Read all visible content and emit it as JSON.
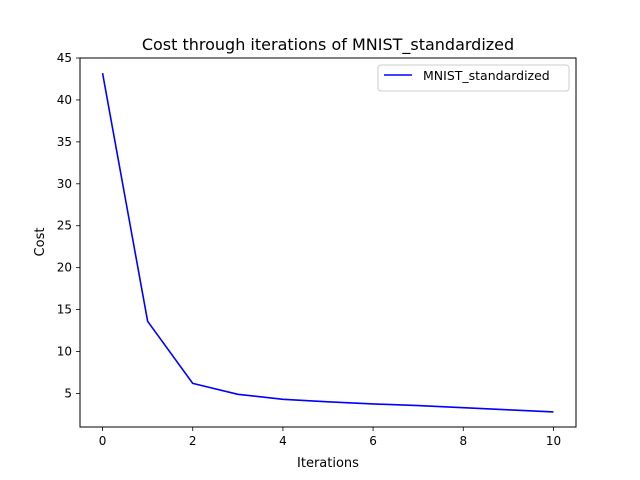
{
  "chart_data": {
    "type": "line",
    "title": "Cost through iterations of MNIST_standardized",
    "xlabel": "Iterations",
    "ylabel": "Cost",
    "xlim": [
      -0.5,
      10.5
    ],
    "ylim": [
      1.0,
      45.0
    ],
    "xticks": [
      0,
      2,
      4,
      6,
      8,
      10
    ],
    "yticks": [
      5,
      10,
      15,
      20,
      25,
      30,
      35,
      40,
      45
    ],
    "grid": false,
    "legend_position": "top-right",
    "series": [
      {
        "name": "MNIST_standardized",
        "color": "#0000ff",
        "x": [
          0,
          1,
          2,
          3,
          4,
          5,
          6,
          7,
          8,
          9,
          10
        ],
        "y": [
          43.2,
          13.6,
          6.2,
          4.9,
          4.3,
          4.0,
          3.75,
          3.55,
          3.3,
          3.05,
          2.8
        ]
      }
    ]
  }
}
